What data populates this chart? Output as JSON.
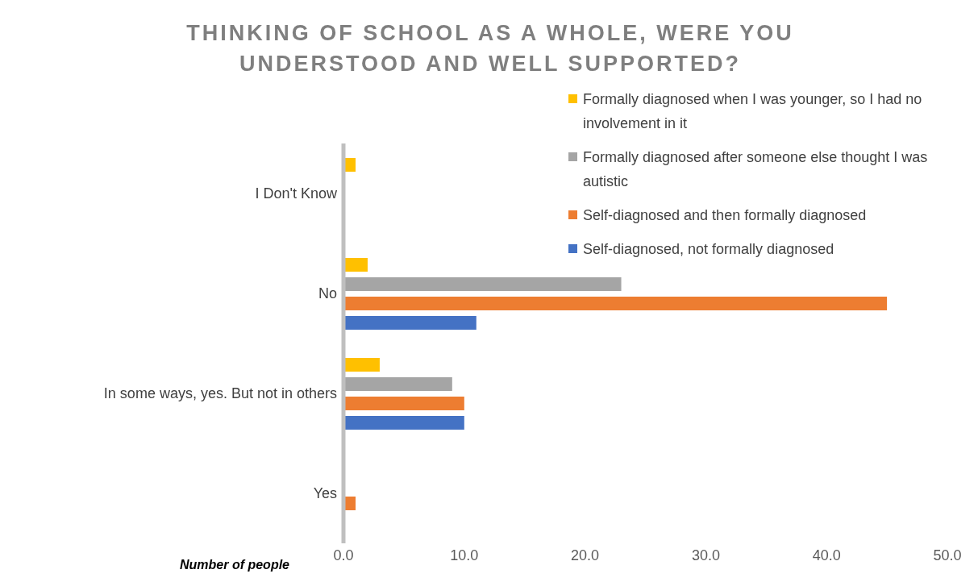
{
  "chart_data": {
    "type": "bar",
    "orientation": "horizontal",
    "title": "THINKING OF SCHOOL AS A WHOLE, WERE YOU UNDERSTOOD AND WELL SUPPORTED?",
    "xlabel": "Number of people",
    "categories": [
      "I Don't Know",
      "No",
      "In some ways, yes. But not in others",
      "Yes"
    ],
    "series": [
      {
        "name": "Formally diagnosed when I was younger, so I had no involvement in it",
        "color": "#ffc000",
        "values": [
          1,
          2,
          3,
          null
        ]
      },
      {
        "name": "Formally diagnosed after someone else thought I was autistic",
        "color": "#a5a5a5",
        "values": [
          null,
          23,
          9,
          null
        ]
      },
      {
        "name": "Self-diagnosed and then formally diagnosed",
        "color": "#ed7d31",
        "values": [
          null,
          45,
          10,
          1
        ]
      },
      {
        "name": "Self-diagnosed, not formally diagnosed",
        "color": "#4472c4",
        "values": [
          null,
          11,
          10,
          null
        ]
      }
    ],
    "xlim": [
      0,
      50
    ],
    "xticks": [
      {
        "value": 0,
        "label": "0.0"
      },
      {
        "value": 10,
        "label": "10.0"
      },
      {
        "value": 20,
        "label": "20.0"
      },
      {
        "value": 30,
        "label": "30.0"
      },
      {
        "value": 40,
        "label": "40.0"
      },
      {
        "value": 50,
        "label": "50.0"
      }
    ],
    "grid": false,
    "legend": "top right"
  }
}
